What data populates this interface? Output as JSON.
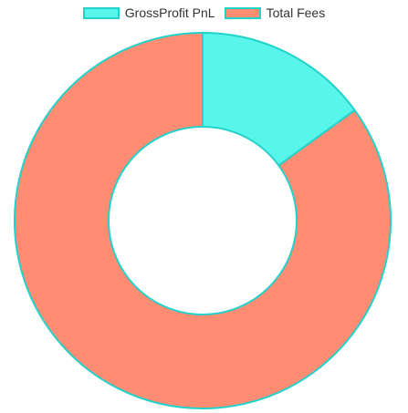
{
  "chart_data": {
    "type": "pie",
    "variant": "donut",
    "legend_position": "top",
    "series": [
      {
        "name": "GrossProfit PnL",
        "value": 15,
        "color": "#58f5ea"
      },
      {
        "name": "Total Fees",
        "value": 85,
        "color": "#ff8c73"
      }
    ],
    "border_color": "#23d2c8",
    "start_angle": "top",
    "direction": "clockwise",
    "cutout": 0.5
  }
}
